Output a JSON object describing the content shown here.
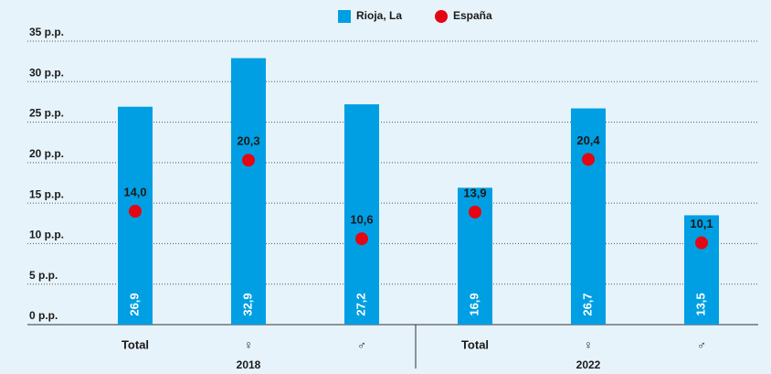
{
  "chart_data": {
    "type": "bar",
    "categories": [
      "Total",
      "♀",
      "♂",
      "Total",
      "♀",
      "♂"
    ],
    "groups": [
      "2018",
      "2022"
    ],
    "series": [
      {
        "name": "Rioja, La",
        "color": "#009fe3",
        "values": [
          26.9,
          32.9,
          27.2,
          16.9,
          26.7,
          13.5
        ],
        "value_labels": [
          "26,9",
          "32,9",
          "27,2",
          "16,9",
          "26,7",
          "13,5"
        ]
      },
      {
        "name": "España",
        "type": "scatter",
        "color": "#e30613",
        "values": [
          14.0,
          20.3,
          10.6,
          13.9,
          20.4,
          10.1
        ],
        "value_labels": [
          "14,0",
          "20,3",
          "10,6",
          "13,9",
          "20,4",
          "10,1"
        ]
      }
    ],
    "ylim": [
      0,
      35
    ],
    "yticks": [
      {
        "value": 0,
        "label": "0 p.p."
      },
      {
        "value": 5,
        "label": "5 p.p."
      },
      {
        "value": 10,
        "label": "10 p.p."
      },
      {
        "value": 15,
        "label": "15 p.p."
      },
      {
        "value": 20,
        "label": "20 p.p."
      },
      {
        "value": 25,
        "label": "25 p.p."
      },
      {
        "value": 30,
        "label": "30 p.p."
      },
      {
        "value": 35,
        "label": "35 p.p."
      }
    ],
    "grid": true,
    "legend": "top"
  }
}
